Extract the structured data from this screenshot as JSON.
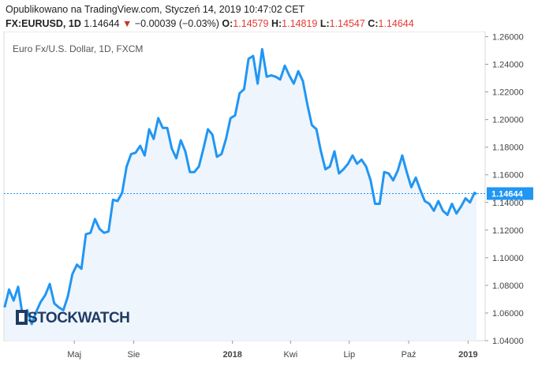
{
  "header": {
    "published_text": "Opublikowano na TradingView.com, Styczeń 14, 2019 10:47:02 CET",
    "symbol": "FX:EURUSD, 1D",
    "last": "1.14644",
    "change_arrow": "▼",
    "change": "−0.00039 (−0.03%)",
    "o_label": "O:",
    "o_value": "1.14579",
    "h_label": "H:",
    "h_value": "1.14819",
    "l_label": "L:",
    "l_value": "1.14547",
    "c_label": "C:",
    "c_value": "1.14644"
  },
  "watermark": "STOCKWATCH",
  "colors": {
    "line": "#2196f3",
    "area": "#eef5fd",
    "price_tag": "#2196f3",
    "change_down": "#c0392b",
    "ohlc": "#e53935"
  },
  "chart_data": {
    "type": "area",
    "title": "Euro Fx/U.S. Dollar, 1D, FXCM",
    "ylim": [
      1.04,
      1.26
    ],
    "y_ticks": [
      "1.04000",
      "1.06000",
      "1.08000",
      "1.10000",
      "1.12000",
      "1.14000",
      "1.16000",
      "1.18000",
      "1.20000",
      "1.22000",
      "1.24000",
      "1.26000"
    ],
    "x_ticks": [
      {
        "label": "Maj",
        "date": "2017-05-01",
        "bold": false
      },
      {
        "label": "Sie",
        "date": "2017-08-01",
        "bold": false
      },
      {
        "label": "2018",
        "date": "2018-01-01",
        "bold": true
      },
      {
        "label": "Kwi",
        "date": "2018-04-01",
        "bold": false
      },
      {
        "label": "Lip",
        "date": "2018-07-01",
        "bold": false
      },
      {
        "label": "Paź",
        "date": "2018-10-01",
        "bold": false
      },
      {
        "label": "2019",
        "date": "2019-01-01",
        "bold": true
      }
    ],
    "x_range": [
      "2017-01-12",
      "2019-01-14"
    ],
    "last_price": 1.14644,
    "last_price_label": "1.14644",
    "grid": false,
    "series": [
      {
        "name": "",
        "x": [
          "2017-01-13",
          "2017-01-20",
          "2017-01-27",
          "2017-02-03",
          "2017-02-10",
          "2017-02-17",
          "2017-02-24",
          "2017-03-03",
          "2017-03-10",
          "2017-03-17",
          "2017-03-24",
          "2017-03-31",
          "2017-04-07",
          "2017-04-14",
          "2017-04-21",
          "2017-04-28",
          "2017-05-05",
          "2017-05-12",
          "2017-05-19",
          "2017-05-26",
          "2017-06-02",
          "2017-06-09",
          "2017-06-16",
          "2017-06-23",
          "2017-06-30",
          "2017-07-07",
          "2017-07-14",
          "2017-07-21",
          "2017-07-28",
          "2017-08-04",
          "2017-08-11",
          "2017-08-18",
          "2017-08-25",
          "2017-09-01",
          "2017-09-08",
          "2017-09-15",
          "2017-09-22",
          "2017-09-29",
          "2017-10-06",
          "2017-10-13",
          "2017-10-20",
          "2017-10-27",
          "2017-11-03",
          "2017-11-10",
          "2017-11-17",
          "2017-11-24",
          "2017-12-01",
          "2017-12-08",
          "2017-12-15",
          "2017-12-22",
          "2017-12-29",
          "2018-01-05",
          "2018-01-12",
          "2018-01-19",
          "2018-01-26",
          "2018-02-02",
          "2018-02-09",
          "2018-02-16",
          "2018-02-23",
          "2018-03-02",
          "2018-03-09",
          "2018-03-16",
          "2018-03-23",
          "2018-03-30",
          "2018-04-06",
          "2018-04-13",
          "2018-04-20",
          "2018-04-27",
          "2018-05-04",
          "2018-05-11",
          "2018-05-18",
          "2018-05-25",
          "2018-06-01",
          "2018-06-08",
          "2018-06-15",
          "2018-06-22",
          "2018-06-29",
          "2018-07-06",
          "2018-07-13",
          "2018-07-20",
          "2018-07-27",
          "2018-08-03",
          "2018-08-10",
          "2018-08-17",
          "2018-08-24",
          "2018-08-31",
          "2018-09-07",
          "2018-09-14",
          "2018-09-21",
          "2018-09-28",
          "2018-10-05",
          "2018-10-12",
          "2018-10-19",
          "2018-10-26",
          "2018-11-02",
          "2018-11-09",
          "2018-11-16",
          "2018-11-23",
          "2018-11-30",
          "2018-12-07",
          "2018-12-14",
          "2018-12-21",
          "2018-12-28",
          "2019-01-04",
          "2019-01-11",
          "2019-01-14"
        ],
        "values": [
          1.064,
          1.077,
          1.069,
          1.079,
          1.058,
          1.062,
          1.052,
          1.061,
          1.068,
          1.073,
          1.081,
          1.067,
          1.064,
          1.062,
          1.072,
          1.088,
          1.095,
          1.092,
          1.117,
          1.118,
          1.128,
          1.121,
          1.118,
          1.119,
          1.142,
          1.141,
          1.147,
          1.166,
          1.175,
          1.176,
          1.181,
          1.174,
          1.193,
          1.186,
          1.201,
          1.194,
          1.194,
          1.179,
          1.172,
          1.185,
          1.177,
          1.162,
          1.162,
          1.166,
          1.179,
          1.193,
          1.189,
          1.173,
          1.175,
          1.186,
          1.201,
          1.203,
          1.219,
          1.222,
          1.244,
          1.246,
          1.226,
          1.251,
          1.231,
          1.232,
          1.231,
          1.229,
          1.239,
          1.232,
          1.226,
          1.235,
          1.228,
          1.211,
          1.196,
          1.193,
          1.177,
          1.164,
          1.166,
          1.177,
          1.161,
          1.164,
          1.168,
          1.174,
          1.168,
          1.171,
          1.166,
          1.156,
          1.139,
          1.139,
          1.162,
          1.161,
          1.156,
          1.163,
          1.174,
          1.162,
          1.151,
          1.158,
          1.149,
          1.141,
          1.139,
          1.134,
          1.141,
          1.134,
          1.131,
          1.139,
          1.132,
          1.137,
          1.143,
          1.14,
          1.147,
          1.146
        ]
      }
    ]
  }
}
